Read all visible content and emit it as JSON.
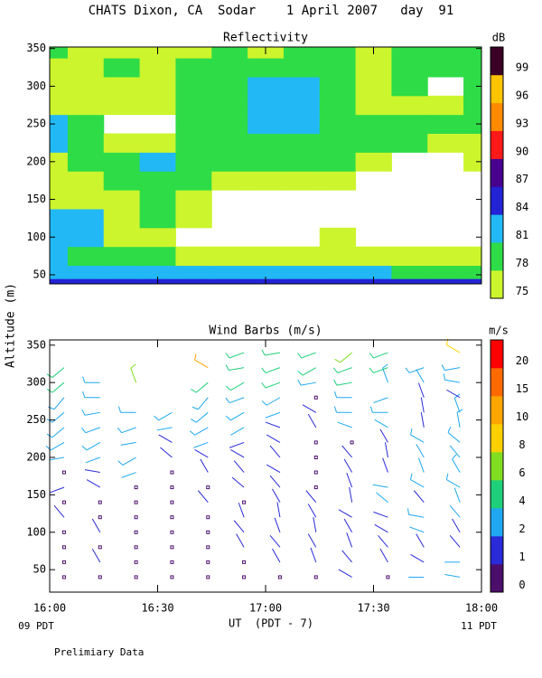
{
  "title": "CHATS Dixon, CA  Sodar    1 April 2007   day  91",
  "y_label": "Altitude (m)",
  "x_label": "UT  (PDT - 7)",
  "left_note": "09 PDT",
  "right_note": "11 PDT",
  "footer": "Prelimiary Data",
  "chart_data": [
    {
      "type": "contour",
      "title": "Reflectivity",
      "colorbar_unit": "dB",
      "x": [
        "16:00",
        "16:10",
        "16:20",
        "16:30",
        "16:40",
        "16:50",
        "17:00",
        "17:10",
        "17:20",
        "17:30",
        "17:40",
        "17:50",
        "18:00"
      ],
      "y": [
        40,
        50,
        75,
        100,
        125,
        150,
        175,
        200,
        225,
        250,
        275,
        300,
        325,
        350
      ],
      "z": [
        [
          85,
          85,
          85,
          85,
          85,
          85,
          85,
          85,
          85,
          85,
          85,
          85,
          85
        ],
        [
          82,
          82,
          82,
          82,
          82,
          82,
          82,
          82,
          82,
          82,
          79,
          79,
          79
        ],
        [
          82,
          78,
          78,
          78,
          76,
          76,
          76,
          76,
          76,
          76,
          76,
          76,
          76
        ],
        [
          82,
          82,
          76,
          76,
          73,
          73,
          73,
          73,
          76,
          73,
          73,
          73,
          73
        ],
        [
          82,
          82,
          76,
          78,
          76,
          73,
          73,
          73,
          73,
          73,
          73,
          73,
          73
        ],
        [
          76,
          76,
          76,
          78,
          76,
          73,
          73,
          73,
          73,
          73,
          73,
          73,
          73
        ],
        [
          76,
          76,
          78,
          78,
          78,
          76,
          76,
          76,
          76,
          73,
          73,
          73,
          73
        ],
        [
          76,
          78,
          78,
          82,
          78,
          78,
          78,
          78,
          78,
          76,
          73,
          73,
          76
        ],
        [
          82,
          78,
          76,
          76,
          78,
          78,
          79,
          78,
          78,
          78,
          78,
          76,
          76
        ],
        [
          82,
          78,
          73,
          73,
          78,
          79,
          82,
          82,
          78,
          78,
          78,
          78,
          78
        ],
        [
          76,
          76,
          76,
          76,
          78,
          78,
          82,
          82,
          78,
          76,
          76,
          76,
          78
        ],
        [
          76,
          76,
          76,
          76,
          78,
          79,
          82,
          82,
          78,
          76,
          78,
          73,
          78
        ],
        [
          76,
          76,
          78,
          76,
          78,
          78,
          79,
          78,
          78,
          76,
          78,
          78,
          78
        ],
        [
          78,
          76,
          76,
          76,
          76,
          78,
          76,
          78,
          78,
          76,
          78,
          78,
          78
        ]
      ],
      "levels": [
        75,
        78,
        81,
        84,
        87,
        90,
        93,
        96,
        99
      ],
      "colors": [
        "#ccf52e",
        "#2edc47",
        "#22b8f5",
        "#2323d6",
        "#48008f",
        "#ff1a1a",
        "#ff8a00",
        "#ffc400",
        "#3a0026"
      ],
      "xlim": [
        "16:00",
        "18:00"
      ],
      "ylim": [
        38,
        352
      ],
      "yticks": [
        50,
        100,
        150,
        200,
        250,
        300,
        350
      ]
    },
    {
      "type": "barbs",
      "title": "Wind Barbs (m/s)",
      "colorbar_unit": "m/s",
      "heights": [
        40,
        60,
        80,
        100,
        120,
        140,
        160,
        180,
        200,
        220,
        240,
        260,
        280,
        300,
        320,
        340
      ],
      "columns": [
        {
          "x": "16:04",
          "speed": [
            0,
            0,
            0,
            0,
            1,
            0,
            1.5,
            0,
            2,
            2.5,
            3,
            3,
            3.5,
            4,
            4.5,
            null
          ],
          "direction": [
            0,
            0,
            0,
            0,
            320,
            0,
            250,
            0,
            260,
            240,
            230,
            230,
            220,
            230,
            230,
            null
          ]
        },
        {
          "x": "16:14",
          "speed": [
            0,
            1,
            0,
            1,
            0,
            0,
            1.5,
            1.5,
            2,
            2.5,
            2.5,
            3,
            3,
            3,
            null,
            null
          ],
          "direction": [
            0,
            330,
            0,
            330,
            0,
            0,
            300,
            280,
            250,
            240,
            250,
            260,
            270,
            270,
            null,
            null
          ]
        },
        {
          "x": "16:24",
          "speed": [
            0,
            0,
            0,
            0,
            0,
            0,
            0,
            2,
            2.5,
            2,
            2.5,
            2.5,
            null,
            6,
            null,
            null
          ],
          "direction": [
            0,
            0,
            0,
            0,
            0,
            0,
            0,
            250,
            240,
            260,
            250,
            270,
            null,
            340,
            null,
            null
          ]
        },
        {
          "x": "16:34",
          "speed": [
            0,
            0,
            0,
            0,
            0,
            0,
            0,
            0,
            1,
            1.5,
            2,
            2.5,
            null,
            null,
            null,
            null
          ],
          "direction": [
            0,
            0,
            0,
            0,
            0,
            0,
            0,
            0,
            310,
            300,
            260,
            240,
            null,
            null,
            null,
            null
          ]
        },
        {
          "x": "16:44",
          "speed": [
            0,
            0,
            0,
            0,
            0,
            1,
            0,
            1,
            1.5,
            2,
            2.5,
            3,
            3.5,
            4,
            12,
            null
          ],
          "direction": [
            0,
            0,
            0,
            0,
            0,
            320,
            0,
            330,
            300,
            250,
            240,
            230,
            220,
            230,
            300,
            null
          ]
        },
        {
          "x": "16:54",
          "speed": [
            0,
            0,
            1,
            1,
            1,
            0,
            1,
            1,
            1.5,
            1.5,
            2,
            2.5,
            3,
            4,
            5,
            5
          ],
          "direction": [
            0,
            0,
            330,
            320,
            340,
            0,
            310,
            320,
            300,
            250,
            240,
            240,
            250,
            240,
            260,
            250
          ]
        },
        {
          "x": "17:04",
          "speed": [
            0,
            1,
            1.5,
            1,
            1,
            1,
            1,
            1,
            1.5,
            1.5,
            1.5,
            2,
            2.5,
            4,
            5,
            5
          ],
          "direction": [
            0,
            330,
            320,
            340,
            350,
            330,
            320,
            300,
            320,
            300,
            290,
            250,
            240,
            250,
            250,
            260
          ]
        },
        {
          "x": "17:14",
          "speed": [
            0,
            1,
            1,
            1,
            1.5,
            1,
            0,
            0,
            0,
            0,
            1,
            1.5,
            0,
            3,
            4,
            5
          ],
          "direction": [
            0,
            340,
            330,
            350,
            330,
            320,
            0,
            0,
            0,
            0,
            330,
            300,
            0,
            260,
            240,
            250
          ]
        },
        {
          "x": "17:24",
          "speed": [
            1.5,
            1,
            1,
            1,
            1.5,
            1,
            1,
            1,
            1,
            0,
            2,
            3,
            3,
            4,
            5,
            6
          ],
          "direction": [
            300,
            320,
            340,
            330,
            300,
            350,
            340,
            330,
            320,
            0,
            290,
            270,
            270,
            260,
            250,
            230
          ]
        },
        {
          "x": "17:34",
          "speed": [
            0,
            1,
            1,
            1.5,
            1.5,
            2,
            2,
            1,
            1,
            1,
            2,
            2.5,
            2,
            3,
            4,
            5
          ],
          "direction": [
            0,
            330,
            320,
            300,
            290,
            310,
            280,
            340,
            350,
            330,
            300,
            270,
            250,
            340,
            250,
            250
          ]
        },
        {
          "x": "17:44",
          "speed": [
            2,
            1.5,
            1,
            2,
            2.5,
            1.5,
            2.5,
            2,
            2,
            2.5,
            1,
            1,
            1,
            2,
            3,
            null
          ],
          "direction": [
            270,
            300,
            330,
            290,
            280,
            320,
            300,
            340,
            330,
            300,
            350,
            350,
            340,
            330,
            250,
            null
          ]
        },
        {
          "x": "17:54",
          "speed": [
            2,
            2,
            1.5,
            1.5,
            2,
            2,
            2.5,
            2.5,
            2,
            2.5,
            3,
            2.5,
            1.5,
            2.5,
            3,
            9
          ],
          "direction": [
            280,
            270,
            320,
            330,
            320,
            340,
            300,
            330,
            320,
            310,
            350,
            340,
            300,
            280,
            260,
            300
          ]
        }
      ],
      "levels": [
        0,
        1,
        2,
        4,
        6,
        8,
        10,
        15,
        20
      ],
      "colors": [
        "#4b0f6b",
        "#2a2ad8",
        "#1fa8f0",
        "#1fd07a",
        "#80dd22",
        "#ffd000",
        "#ffa500",
        "#ff6a00",
        "#ff0000"
      ],
      "xlim": [
        "16:00",
        "18:00"
      ],
      "xticks": [
        "16:00",
        "16:30",
        "17:00",
        "17:30",
        "18:00"
      ],
      "ylim": [
        20,
        357
      ],
      "yticks": [
        50,
        100,
        150,
        200,
        250,
        300,
        350
      ]
    }
  ]
}
